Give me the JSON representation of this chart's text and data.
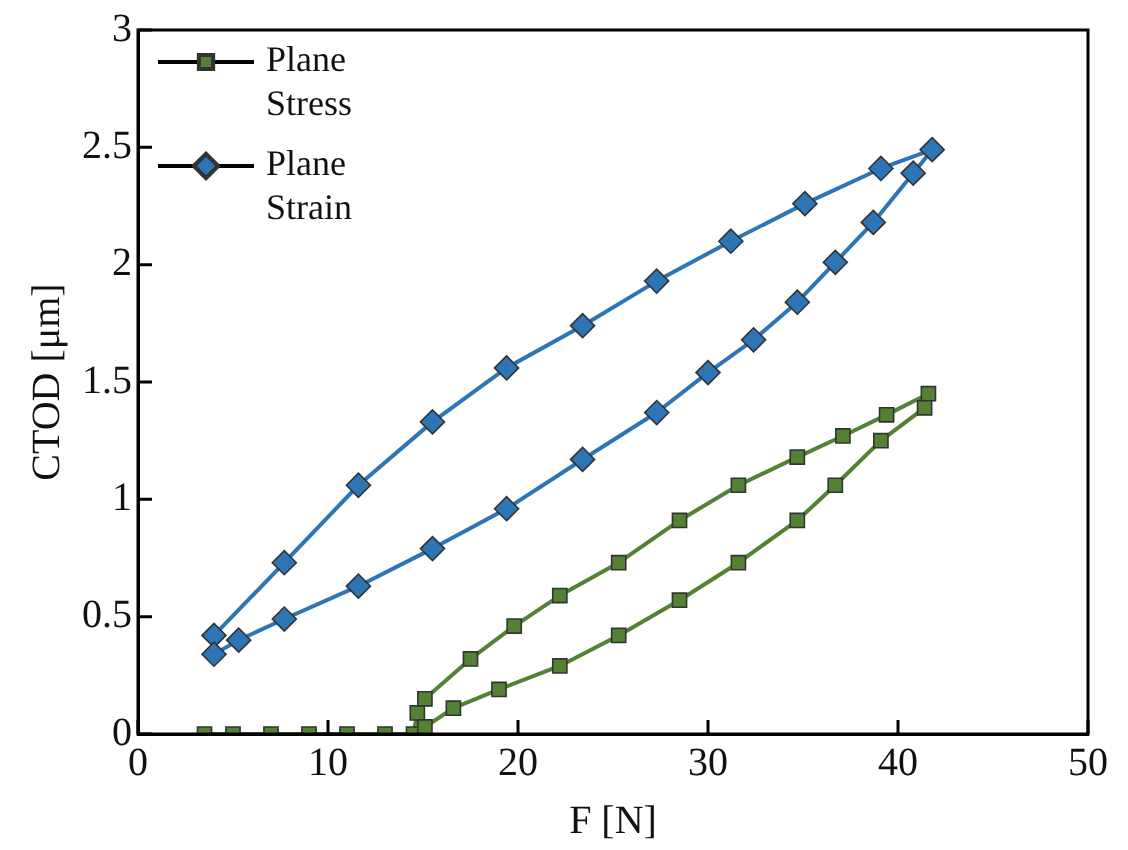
{
  "chart_data": {
    "type": "line",
    "xlabel": "F [N]",
    "ylabel": "CTOD [μm]",
    "xlim": [
      0,
      50
    ],
    "xticks": [
      0,
      10,
      20,
      30,
      40,
      50
    ],
    "ylim": [
      0,
      3
    ],
    "yticks": [
      0,
      0.5,
      1,
      1.5,
      2,
      2.5,
      3
    ],
    "grid": false,
    "legend": "top left",
    "line_style": "solid",
    "series": [
      {
        "name": "Plane Stress",
        "color": "#548235",
        "marker": "square",
        "x": [
          3.5,
          5,
          7,
          9,
          11,
          13,
          14.5,
          14.7,
          15.1,
          17.5,
          19.8,
          22.2,
          25.3,
          28.5,
          31.6,
          34.7,
          37.1,
          39.4,
          41.6,
          41.4,
          39.1,
          36.7,
          34.7,
          31.6,
          28.5,
          25.3,
          22.2,
          19.0,
          16.6,
          15.1
        ],
        "values": [
          0,
          0,
          0,
          0,
          0,
          0,
          0,
          0.09,
          0.15,
          0.32,
          0.46,
          0.59,
          0.73,
          0.91,
          1.06,
          1.18,
          1.27,
          1.36,
          1.45,
          1.39,
          1.25,
          1.06,
          0.91,
          0.73,
          0.57,
          0.42,
          0.29,
          0.19,
          0.11,
          0.03
        ]
      },
      {
        "name": "Plane Strain",
        "color": "#2e75b6",
        "marker": "diamond",
        "x": [
          4.0,
          7.7,
          11.6,
          15.5,
          19.4,
          23.4,
          27.3,
          31.2,
          35.1,
          39.1,
          41.8,
          40.8,
          38.7,
          36.7,
          34.7,
          32.4,
          30.0,
          27.3,
          23.4,
          19.4,
          15.5,
          11.6,
          7.7,
          5.3,
          4.0
        ],
        "values": [
          0.42,
          0.73,
          1.06,
          1.33,
          1.56,
          1.74,
          1.93,
          2.1,
          2.26,
          2.41,
          2.49,
          2.39,
          2.18,
          2.01,
          1.84,
          1.68,
          1.54,
          1.37,
          1.17,
          0.96,
          0.79,
          0.63,
          0.49,
          0.4,
          0.34
        ]
      }
    ]
  }
}
